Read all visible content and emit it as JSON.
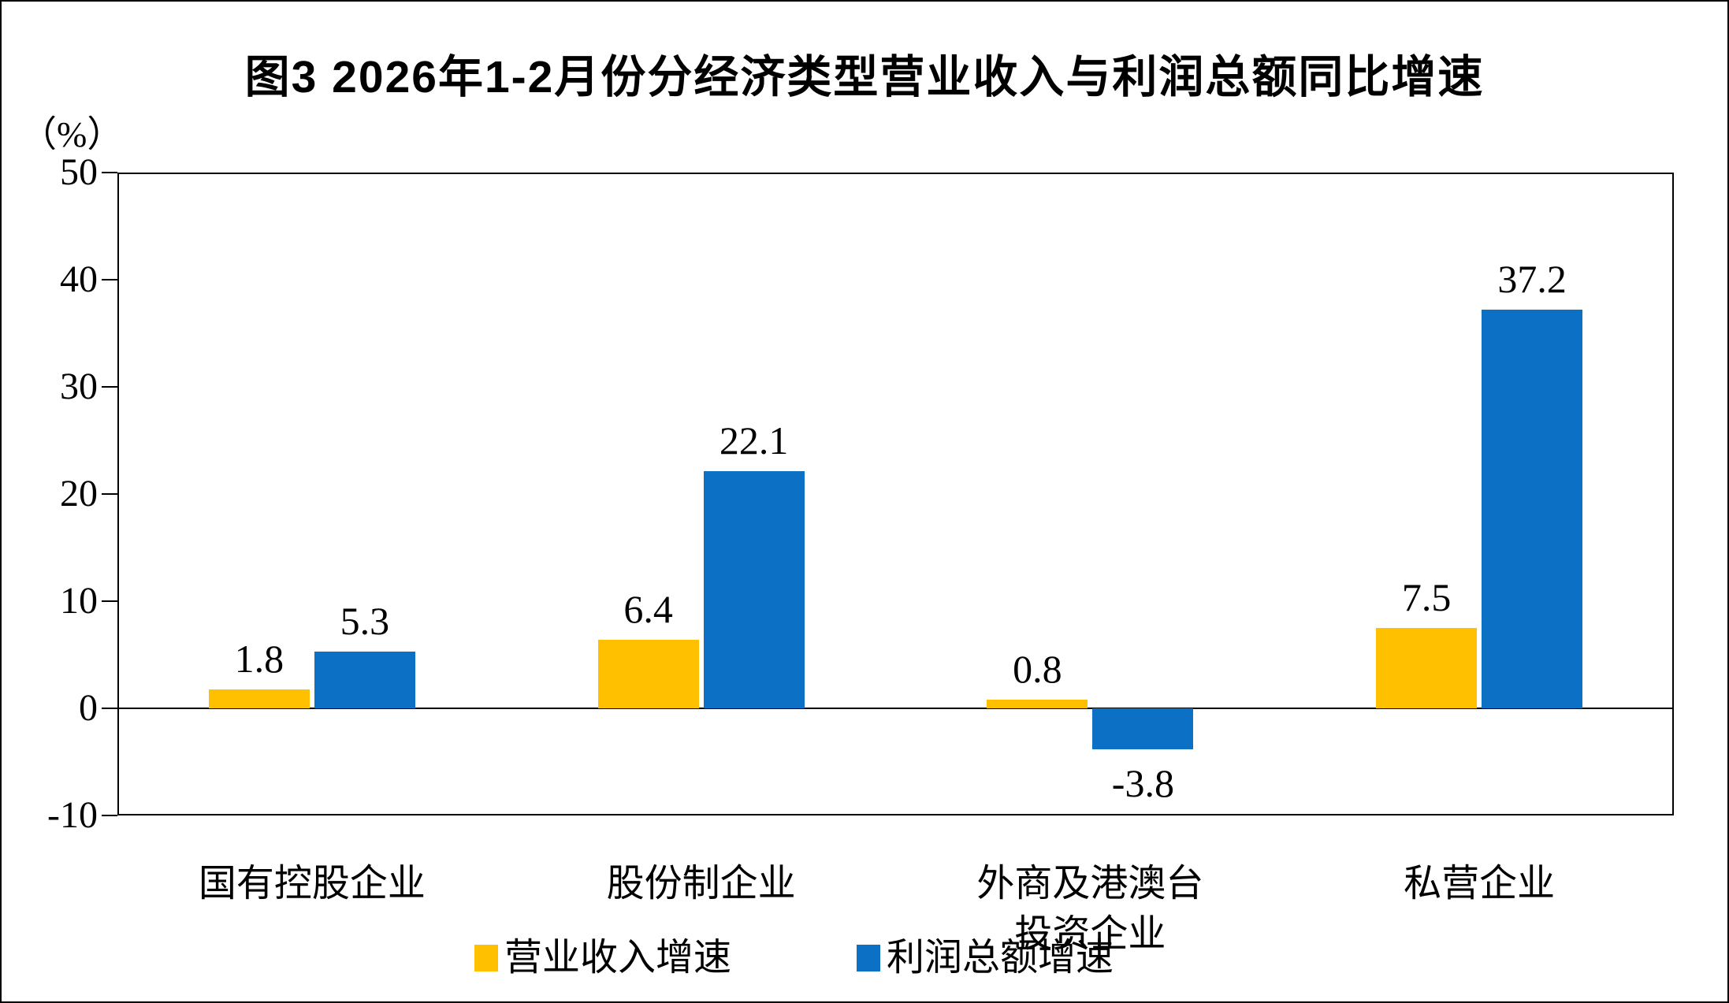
{
  "chart_data": {
    "type": "bar",
    "title": "图3  2026年1-2月份分经济类型营业收入与利润总额同比增速",
    "unit_label": "（%）",
    "categories": [
      "国有控股企业",
      "股份制企业",
      "外商及港澳台\n投资企业",
      "私营企业"
    ],
    "series": [
      {
        "name": "营业收入增速",
        "color": "#FFC000",
        "values": [
          1.8,
          6.4,
          0.8,
          7.5
        ]
      },
      {
        "name": "利润总额增速",
        "color": "#0C71C4",
        "values": [
          5.3,
          22.1,
          -3.8,
          37.2
        ]
      }
    ],
    "value_labels": [
      [
        "1.8",
        "6.4",
        "0.8",
        "7.5"
      ],
      [
        "5.3",
        "22.1",
        "-3.8",
        "37.2"
      ]
    ],
    "ylim": [
      -10,
      50
    ],
    "ytick_step": 10,
    "ytick_labels": [
      "50",
      "40",
      "30",
      "20",
      "10",
      "0",
      "-10"
    ],
    "grid": false,
    "legend_position": "bottom"
  }
}
